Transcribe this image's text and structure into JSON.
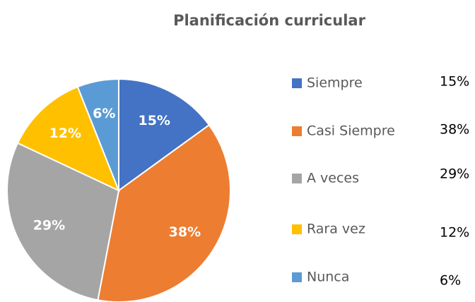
{
  "chart_data": {
    "type": "pie",
    "title": "Planificación curricular",
    "categories": [
      "Siempre",
      "Casi Siempre",
      "A veces",
      "Rara vez",
      "Nunca"
    ],
    "values": [
      15,
      38,
      29,
      12,
      6
    ],
    "value_labels": [
      "15%",
      "38%",
      "29%",
      "12%",
      "6%"
    ],
    "colors": [
      "#4472c4",
      "#ed7d31",
      "#a5a5a5",
      "#ffc000",
      "#5b9bd5"
    ],
    "legend": "right"
  }
}
